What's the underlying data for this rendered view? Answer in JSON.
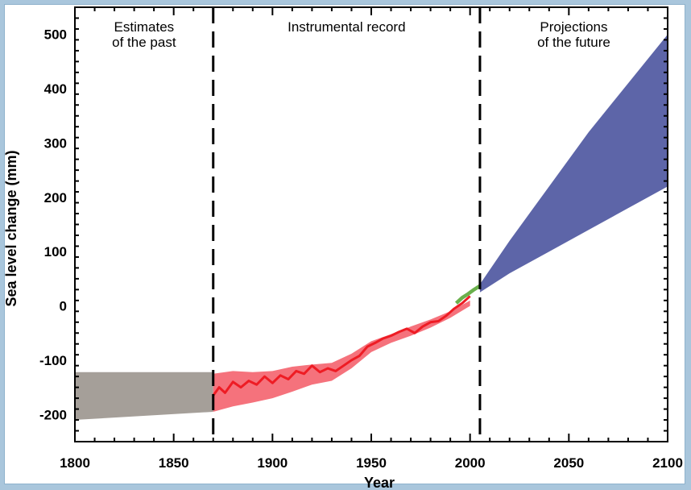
{
  "chart_data": {
    "type": "area",
    "title": "",
    "xlabel": "Year",
    "ylabel": "Sea level change (mm)",
    "xlim": [
      1800,
      2100
    ],
    "ylim": [
      -250,
      550
    ],
    "x_ticks": [
      1800,
      1850,
      1900,
      1950,
      2000,
      2050,
      2100
    ],
    "y_ticks": [
      -200,
      -100,
      0,
      100,
      200,
      300,
      400,
      500
    ],
    "grid": false,
    "legend": "none",
    "dividers": [
      1870,
      2005
    ],
    "regions": [
      {
        "lines": [
          "Estimates",
          "of the past"
        ]
      },
      {
        "lines": [
          "Instrumental record"
        ]
      },
      {
        "lines": [
          "Projections",
          "of the future"
        ]
      }
    ],
    "colors": {
      "past_band": "#a59f99",
      "instrumental_band": "#f5727c",
      "instrumental_line": "#ee1c24",
      "satellite_line": "#6ab04c",
      "projection_band": "#5d65a8"
    },
    "series": [
      {
        "role": "past_band",
        "x": [
          1800,
          1870
        ],
        "y_upper": [
          -122,
          -122
        ],
        "y_lower": [
          -210,
          -195
        ]
      },
      {
        "role": "instrumental_band",
        "x": [
          1870,
          1880,
          1890,
          1900,
          1910,
          1920,
          1930,
          1940,
          1950,
          1960,
          1970,
          1980,
          1990,
          2000
        ],
        "y_upper": [
          -125,
          -120,
          -122,
          -120,
          -112,
          -108,
          -105,
          -88,
          -65,
          -52,
          -38,
          -25,
          -10,
          10
        ],
        "y_lower": [
          -195,
          -185,
          -178,
          -170,
          -158,
          -145,
          -138,
          -115,
          -85,
          -68,
          -55,
          -40,
          -22,
          0
        ]
      },
      {
        "role": "instrumental_line",
        "x": [
          1870,
          1873,
          1876,
          1880,
          1884,
          1888,
          1892,
          1896,
          1900,
          1904,
          1908,
          1912,
          1916,
          1920,
          1924,
          1928,
          1932,
          1936,
          1940,
          1944,
          1948,
          1952,
          1956,
          1960,
          1964,
          1968,
          1972,
          1976,
          1980,
          1984,
          1988,
          1992,
          1996,
          2000
        ],
        "y": [
          -165,
          -150,
          -160,
          -140,
          -150,
          -138,
          -145,
          -130,
          -142,
          -128,
          -135,
          -120,
          -125,
          -110,
          -122,
          -115,
          -120,
          -110,
          -100,
          -92,
          -75,
          -68,
          -60,
          -55,
          -48,
          -42,
          -50,
          -38,
          -30,
          -28,
          -18,
          -5,
          5,
          18
        ]
      },
      {
        "role": "satellite_line",
        "x": [
          1993,
          1996,
          1999,
          2002,
          2005
        ],
        "y": [
          5,
          15,
          22,
          30,
          37
        ]
      },
      {
        "role": "projection_band",
        "x": [
          2005,
          2020,
          2040,
          2060,
          2080,
          2100
        ],
        "y_upper": [
          40,
          120,
          220,
          320,
          410,
          500
        ],
        "y_lower": [
          25,
          60,
          100,
          140,
          180,
          220
        ]
      }
    ]
  }
}
